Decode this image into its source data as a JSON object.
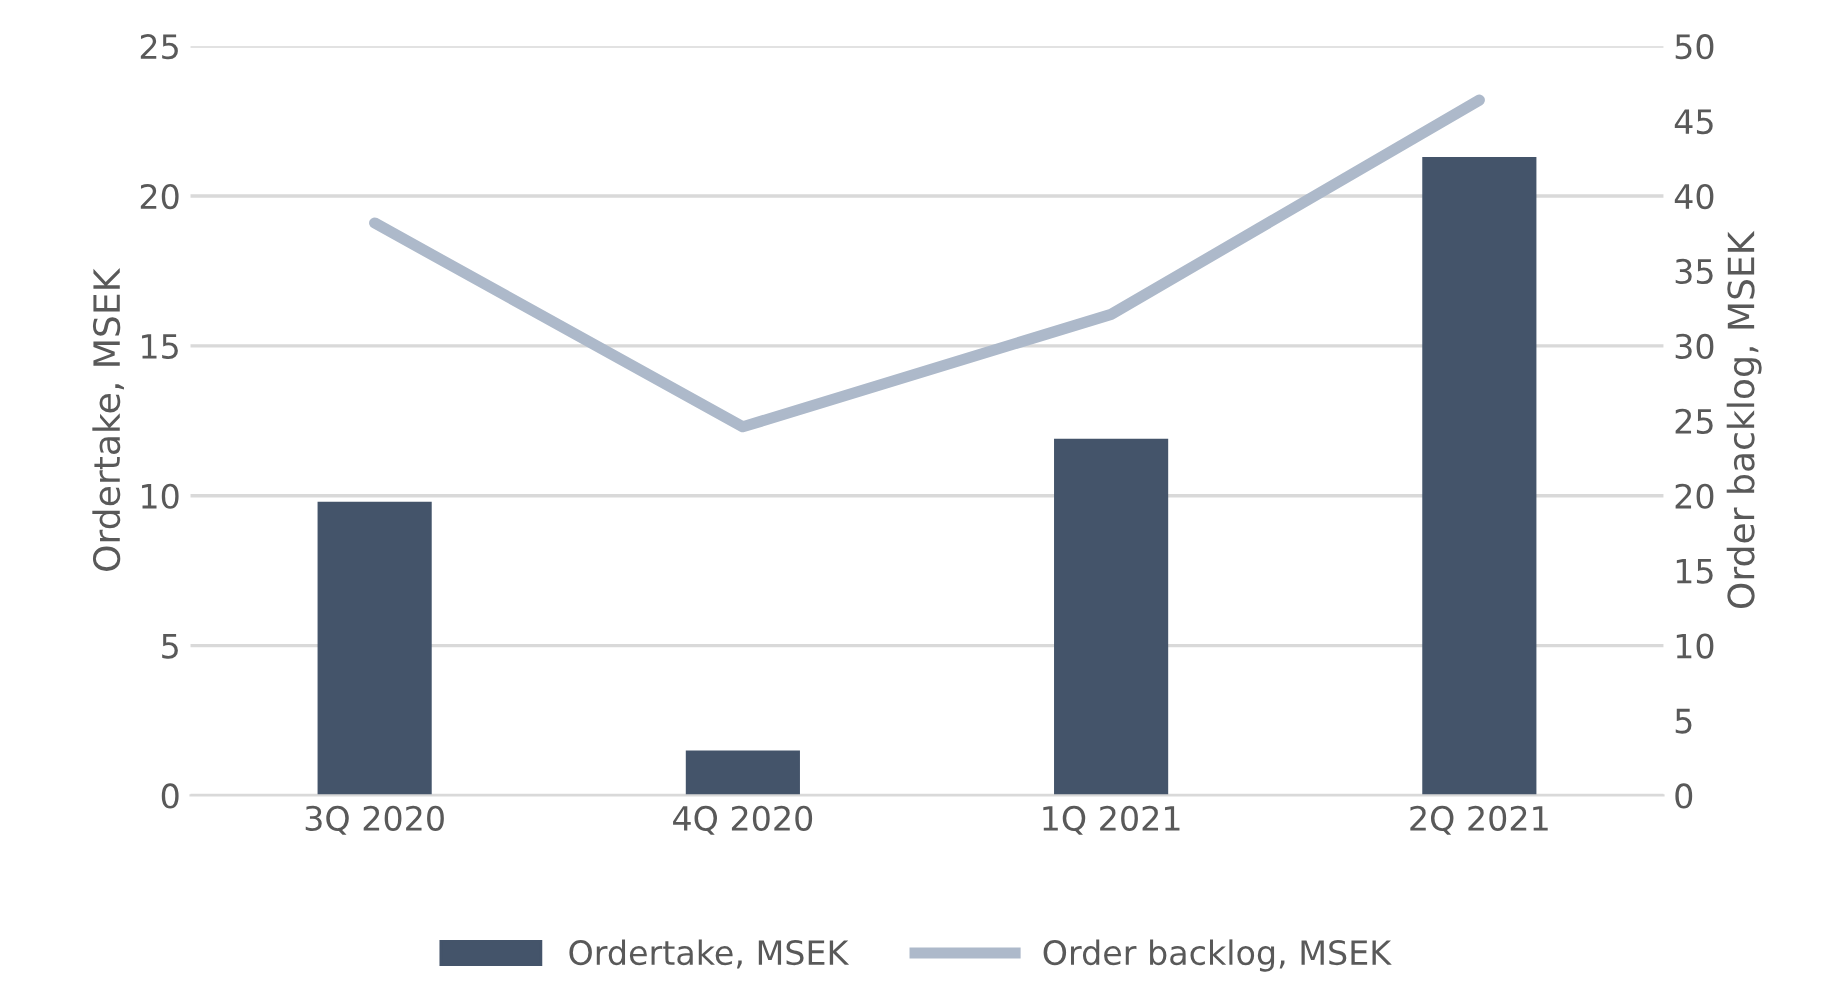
{
  "chart_data": {
    "type": "bar",
    "categories": [
      "3Q 2020",
      "4Q 2020",
      "1Q 2021",
      "2Q 2021"
    ],
    "ylabel": "Ordertake, MSEK",
    "y2label": "Order backlog, MSEK",
    "series": [
      {
        "name": "Ordertake, MSEK",
        "color": "#44546a",
        "values": [
          9.8,
          1.5,
          11.9,
          21.3
        ]
      },
      {
        "name": "Order backlog, MSEK",
        "type": "line",
        "axis": "y2",
        "color": "#adb9ca",
        "values": [
          38.2,
          24.6,
          32.1,
          46.4
        ]
      }
    ],
    "ylim": [
      0,
      25
    ],
    "yticks": [
      0,
      5,
      10,
      15,
      20,
      25
    ],
    "y2lim": [
      0,
      50
    ],
    "y2ticks": [
      0,
      5,
      10,
      15,
      20,
      25,
      30,
      35,
      40,
      45,
      50
    ],
    "grid": "y",
    "legend": "bottom",
    "marker": "none"
  }
}
